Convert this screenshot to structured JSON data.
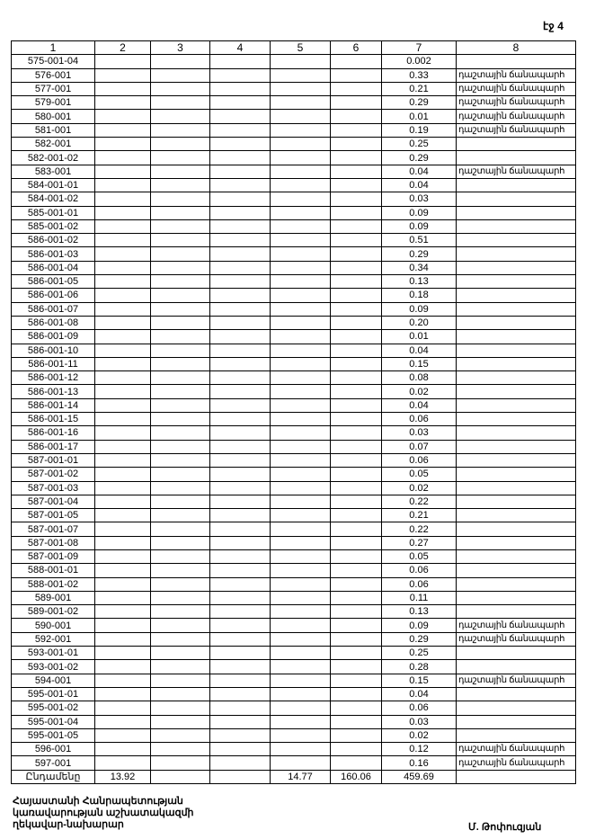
{
  "page_label": "էջ 4",
  "columns": [
    "1",
    "2",
    "3",
    "4",
    "5",
    "6",
    "7",
    "8"
  ],
  "rows": [
    {
      "code": "575-001-04",
      "area": "0.002",
      "note": ""
    },
    {
      "code": "576-001",
      "area": "0.33",
      "note": "դաշտային ճանապարհ"
    },
    {
      "code": "577-001",
      "area": "0.21",
      "note": "դաշտային ճանապարհ"
    },
    {
      "code": "579-001",
      "area": "0.29",
      "note": "դաշտային ճանապարհ"
    },
    {
      "code": "580-001",
      "area": "0.01",
      "note": "դաշտային ճանապարհ"
    },
    {
      "code": "581-001",
      "area": "0.19",
      "note": "դաշտային ճանապարհ"
    },
    {
      "code": "582-001",
      "area": "0.25",
      "note": ""
    },
    {
      "code": "582-001-02",
      "area": "0.29",
      "note": ""
    },
    {
      "code": "583-001",
      "area": "0.04",
      "note": "դաշտային ճանապարհ"
    },
    {
      "code": "584-001-01",
      "area": "0.04",
      "note": ""
    },
    {
      "code": "584-001-02",
      "area": "0.03",
      "note": ""
    },
    {
      "code": "585-001-01",
      "area": "0.09",
      "note": ""
    },
    {
      "code": "585-001-02",
      "area": "0.09",
      "note": ""
    },
    {
      "code": "586-001-02",
      "area": "0.51",
      "note": ""
    },
    {
      "code": "586-001-03",
      "area": "0.29",
      "note": ""
    },
    {
      "code": "586-001-04",
      "area": "0.34",
      "note": ""
    },
    {
      "code": "586-001-05",
      "area": "0.13",
      "note": ""
    },
    {
      "code": "586-001-06",
      "area": "0.18",
      "note": ""
    },
    {
      "code": "586-001-07",
      "area": "0.09",
      "note": ""
    },
    {
      "code": "586-001-08",
      "area": "0.20",
      "note": ""
    },
    {
      "code": "586-001-09",
      "area": "0.01",
      "note": ""
    },
    {
      "code": "586-001-10",
      "area": "0.04",
      "note": ""
    },
    {
      "code": "586-001-11",
      "area": "0.15",
      "note": ""
    },
    {
      "code": "586-001-12",
      "area": "0.08",
      "note": ""
    },
    {
      "code": "586-001-13",
      "area": "0.02",
      "note": ""
    },
    {
      "code": "586-001-14",
      "area": "0.04",
      "note": ""
    },
    {
      "code": "586-001-15",
      "area": "0.06",
      "note": ""
    },
    {
      "code": "586-001-16",
      "area": "0.03",
      "note": ""
    },
    {
      "code": "586-001-17",
      "area": "0.07",
      "note": ""
    },
    {
      "code": "587-001-01",
      "area": "0.06",
      "note": ""
    },
    {
      "code": "587-001-02",
      "area": "0.05",
      "note": ""
    },
    {
      "code": "587-001-03",
      "area": "0.02",
      "note": ""
    },
    {
      "code": "587-001-04",
      "area": "0.22",
      "note": ""
    },
    {
      "code": "587-001-05",
      "area": "0.21",
      "note": ""
    },
    {
      "code": "587-001-07",
      "area": "0.22",
      "note": ""
    },
    {
      "code": "587-001-08",
      "area": "0.27",
      "note": ""
    },
    {
      "code": "587-001-09",
      "area": "0.05",
      "note": ""
    },
    {
      "code": "588-001-01",
      "area": "0.06",
      "note": ""
    },
    {
      "code": "588-001-02",
      "area": "0.06",
      "note": ""
    },
    {
      "code": "589-001",
      "area": "0.11",
      "note": ""
    },
    {
      "code": "589-001-02",
      "area": "0.13",
      "note": ""
    },
    {
      "code": "590-001",
      "area": "0.09",
      "note": "դաշտային ճանապարհ"
    },
    {
      "code": "592-001",
      "area": "0.29",
      "note": "դաշտային ճանապարհ"
    },
    {
      "code": "593-001-01",
      "area": "0.25",
      "note": ""
    },
    {
      "code": "593-001-02",
      "area": "0.28",
      "note": ""
    },
    {
      "code": "594-001",
      "area": "0.15",
      "note": "դաշտային ճանապարհ"
    },
    {
      "code": "595-001-01",
      "area": "0.04",
      "note": ""
    },
    {
      "code": "595-001-02",
      "area": "0.06",
      "note": ""
    },
    {
      "code": "595-001-04",
      "area": "0.03",
      "note": ""
    },
    {
      "code": "595-001-05",
      "area": "0.02",
      "note": ""
    },
    {
      "code": "596-001",
      "area": "0.12",
      "note": "դաշտային ճանապարհ"
    },
    {
      "code": "597-001",
      "area": "0.16",
      "note": "դաշտային ճանապարհ"
    }
  ],
  "total": {
    "label": "Ընդամենը",
    "c2": "13.92",
    "c3": "",
    "c4": "",
    "c5": "14.77",
    "c6": "160.06",
    "c7": "459.69",
    "c8": ""
  },
  "footer": {
    "line1": "Հայաստանի Հանրապետության",
    "line2": "կառավարության աշխատակազմի",
    "line3": "ղեկավար-նախարար",
    "signatory": "Մ. Թոփուզյան"
  }
}
